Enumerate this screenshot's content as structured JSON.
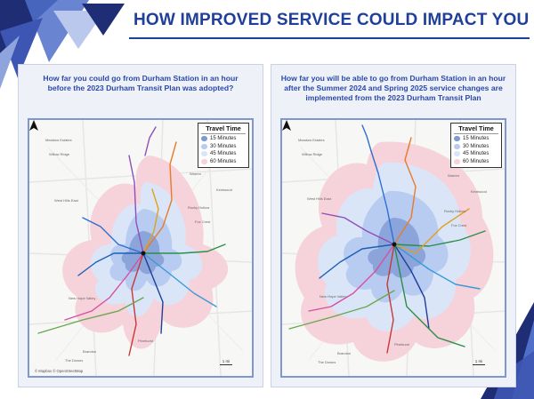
{
  "page": {
    "title": "HOW IMPROVED SERVICE COULD IMPACT YOU"
  },
  "colors": {
    "brand_blue": "#1f3f9a",
    "deco_dark": "#1f2e74",
    "deco_light": "#4f6fc9",
    "zone_15": "#7f9bd6",
    "zone_30": "#b7ccf0",
    "zone_45": "#dbe5f8",
    "zone_60": "#f6d2da"
  },
  "left_panel": {
    "caption_line1": "How far you could go from Durham Station in an hour",
    "caption_line2": "before the 2023 Durham Transit Plan was adopted?",
    "attribution": "© Mapbox © OpenStreetMap",
    "scale": "1 mi"
  },
  "right_panel": {
    "caption_line1": "How far you will be able to go from Durham Station in an hour",
    "caption_line2": "after the Summer 2024 and Spring 2025 service changes are",
    "caption_line3": "implemented from the 2023 Durham Transit Plan",
    "scale": "1 mi"
  },
  "legend": {
    "title": "Travel Time",
    "items": [
      {
        "label": "15 Minutes",
        "color": "#7f9bd6"
      },
      {
        "label": "30 Minutes",
        "color": "#b7ccf0"
      },
      {
        "label": "45 Minutes",
        "color": "#dbe5f8"
      },
      {
        "label": "60 Minutes",
        "color": "#f6d2da"
      }
    ]
  },
  "places": {
    "p1": "Meadow Estates",
    "p2": "Willow Ridge",
    "p3": "Rocky Hollow",
    "p4": "Warren",
    "p5": "Kentwood",
    "p6": "Fox Crest",
    "p7": "New Hope Valley",
    "p8": "Pinehurst",
    "p9": "The Downs",
    "p10": "Brandon",
    "p11": "West Hills East"
  }
}
